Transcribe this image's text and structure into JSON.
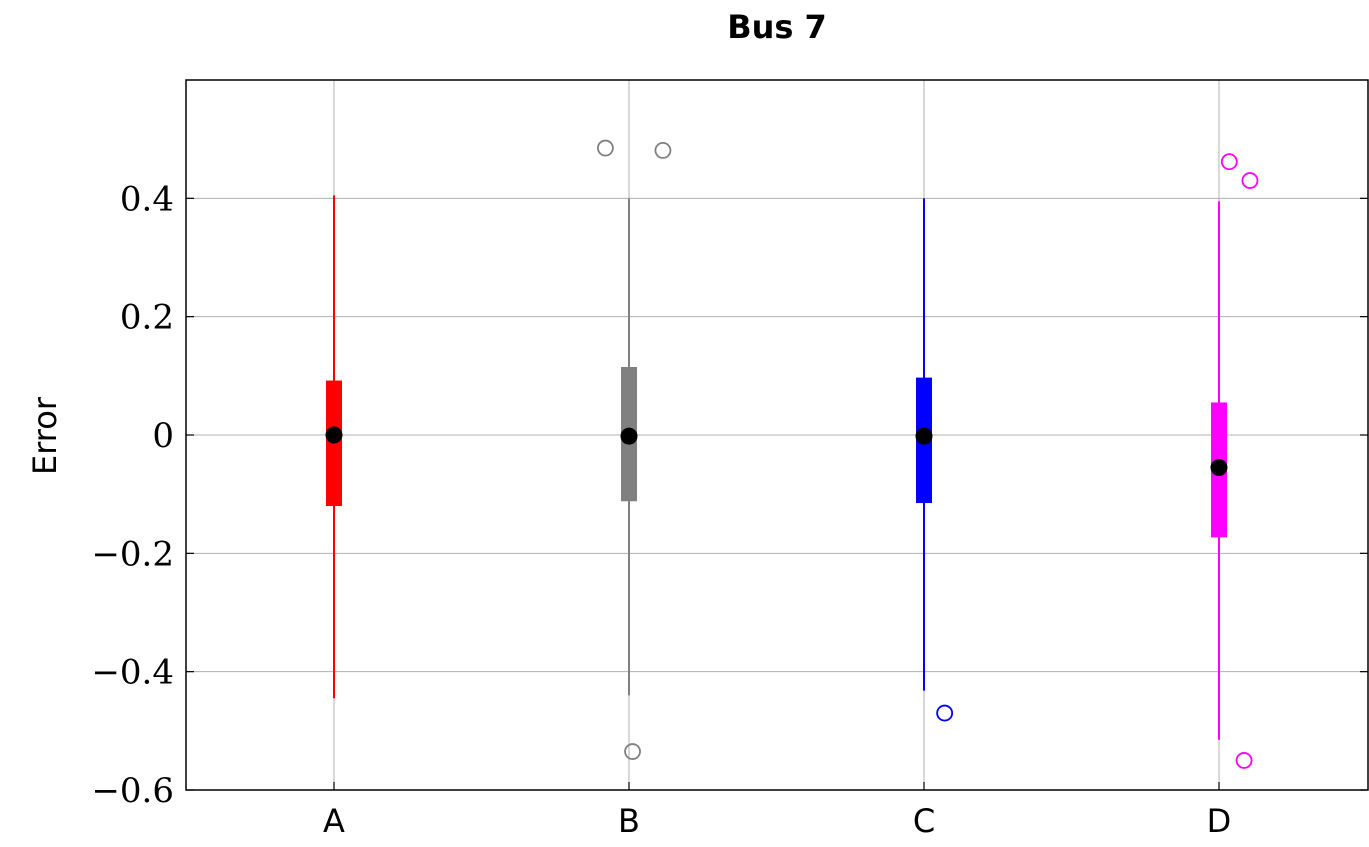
{
  "chart_data": {
    "type": "box",
    "title": "Bus 7",
    "xlabel": "",
    "ylabel": "Error",
    "ylim": [
      -0.6,
      0.6
    ],
    "yticks": [
      -0.6,
      -0.4,
      -0.2,
      0,
      0.2,
      0.4
    ],
    "ytick_labels": [
      "−0.6",
      "−0.4",
      "−0.2",
      "0",
      "0.2",
      "0.4"
    ],
    "grid": true,
    "categories": [
      "A",
      "B",
      "C",
      "D"
    ],
    "boxes": [
      {
        "category": "A",
        "color": "#ff0000",
        "whisker_low": -0.445,
        "q1": -0.12,
        "median": 0.0,
        "q3": 0.092,
        "whisker_high": 0.405,
        "outliers": []
      },
      {
        "category": "B",
        "color": "#808080",
        "whisker_low": -0.44,
        "q1": -0.112,
        "median": -0.002,
        "q3": 0.115,
        "whisker_high": 0.4,
        "outliers": [
          {
            "offset": -0.08,
            "y": 0.485
          },
          {
            "offset": 0.115,
            "y": 0.481
          },
          {
            "offset": 0.012,
            "y": -0.535
          }
        ]
      },
      {
        "category": "C",
        "color": "#0000ff",
        "whisker_low": -0.432,
        "q1": -0.115,
        "median": -0.002,
        "q3": 0.097,
        "whisker_high": 0.4,
        "outliers": [
          {
            "offset": 0.07,
            "y": -0.47
          }
        ]
      },
      {
        "category": "D",
        "color": "#ff00ff",
        "whisker_low": -0.515,
        "q1": -0.173,
        "median": -0.055,
        "q3": 0.055,
        "whisker_high": 0.395,
        "outliers": [
          {
            "offset": 0.035,
            "y": 0.462
          },
          {
            "offset": 0.105,
            "y": 0.43
          },
          {
            "offset": 0.085,
            "y": -0.55
          }
        ]
      }
    ]
  }
}
